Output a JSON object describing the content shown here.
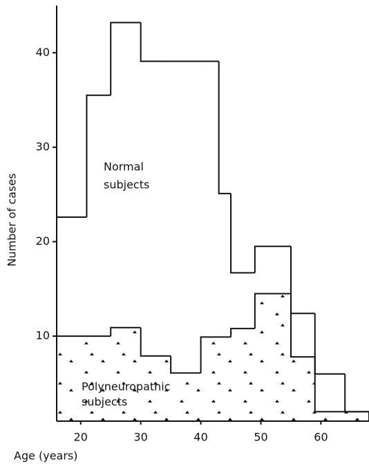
{
  "chart_data": {
    "type": "histogram",
    "xlabel": "Age (years)",
    "ylabel": "Number of cases",
    "bins": [
      16,
      21,
      25,
      30,
      35,
      40,
      43,
      45,
      49,
      55,
      59,
      64,
      68
    ],
    "series": [
      {
        "name": "Normal subjects",
        "color": "#111111",
        "values": [
          22.6,
          35.5,
          43.2,
          39.1,
          39.1,
          39.1,
          25.1,
          16.7,
          19.5,
          12.4,
          6,
          2
        ]
      },
      {
        "name": "Polyneuropathic subjects",
        "color": "#111111",
        "values": [
          10,
          10,
          10.9,
          7.9,
          6.1,
          9.9,
          9.9,
          10.8,
          14.5,
          7.8,
          2,
          2
        ]
      }
    ],
    "annotations": [
      [
        "Normal",
        "subjects"
      ],
      [
        "Polyneuropathic",
        "subjects"
      ]
    ],
    "xlim": [
      16,
      68
    ],
    "ylim": [
      1,
      45
    ],
    "xticks": [
      20,
      30,
      40,
      50,
      60
    ],
    "yticks": [
      10,
      20,
      30,
      40
    ]
  }
}
